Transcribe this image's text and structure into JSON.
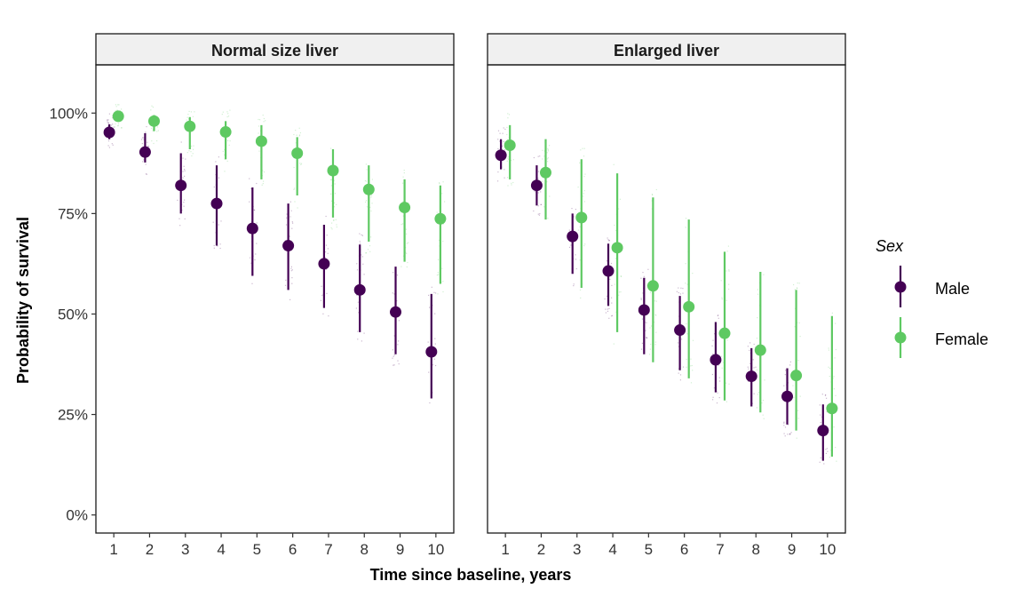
{
  "chart_data": {
    "type": "scatter",
    "xlabel": "Time since baseline, years",
    "ylabel": "Probability of survival",
    "x": [
      1,
      2,
      3,
      4,
      5,
      6,
      7,
      8,
      9,
      10
    ],
    "xlim": [
      0.5,
      10.5
    ],
    "ylim": [
      -0.045,
      1.12
    ],
    "y_ticks": [
      0,
      0.25,
      0.5,
      0.75,
      1.0
    ],
    "y_tick_labels": [
      "0%",
      "25%",
      "50%",
      "75%",
      "100%"
    ],
    "grid": false,
    "legend": {
      "title": "Sex",
      "placement": "right"
    },
    "colors": {
      "Male": "#440154",
      "Female": "#5ec962"
    },
    "panels": [
      {
        "title": "Normal size liver",
        "series": [
          {
            "name": "Male",
            "values": [
              0.952,
              0.903,
              0.82,
              0.775,
              0.713,
              0.67,
              0.625,
              0.56,
              0.505,
              0.406
            ],
            "lower": [
              0.935,
              0.877,
              0.75,
              0.67,
              0.595,
              0.56,
              0.515,
              0.455,
              0.4,
              0.29
            ],
            "upper": [
              0.972,
              0.95,
              0.9,
              0.87,
              0.815,
              0.775,
              0.722,
              0.673,
              0.618,
              0.55
            ]
          },
          {
            "name": "Female",
            "values": [
              0.992,
              0.98,
              0.967,
              0.953,
              0.93,
              0.9,
              0.857,
              0.81,
              0.765,
              0.737
            ],
            "lower": [
              0.985,
              0.955,
              0.91,
              0.885,
              0.835,
              0.795,
              0.74,
              0.68,
              0.63,
              0.575
            ],
            "upper": [
              0.995,
              0.995,
              0.99,
              0.98,
              0.97,
              0.94,
              0.91,
              0.87,
              0.835,
              0.82
            ]
          }
        ]
      },
      {
        "title": "Enlarged liver",
        "series": [
          {
            "name": "Male",
            "values": [
              0.895,
              0.82,
              0.693,
              0.607,
              0.51,
              0.46,
              0.386,
              0.345,
              0.295,
              0.21
            ],
            "lower": [
              0.86,
              0.77,
              0.6,
              0.52,
              0.4,
              0.36,
              0.305,
              0.27,
              0.225,
              0.135
            ],
            "upper": [
              0.935,
              0.87,
              0.75,
              0.675,
              0.59,
              0.545,
              0.48,
              0.415,
              0.365,
              0.275
            ]
          },
          {
            "name": "Female",
            "values": [
              0.92,
              0.852,
              0.74,
              0.665,
              0.57,
              0.518,
              0.452,
              0.41,
              0.347,
              0.265
            ],
            "lower": [
              0.835,
              0.735,
              0.565,
              0.455,
              0.38,
              0.34,
              0.285,
              0.255,
              0.21,
              0.145
            ],
            "upper": [
              0.97,
              0.935,
              0.885,
              0.85,
              0.79,
              0.735,
              0.655,
              0.605,
              0.56,
              0.495
            ]
          }
        ]
      }
    ]
  }
}
